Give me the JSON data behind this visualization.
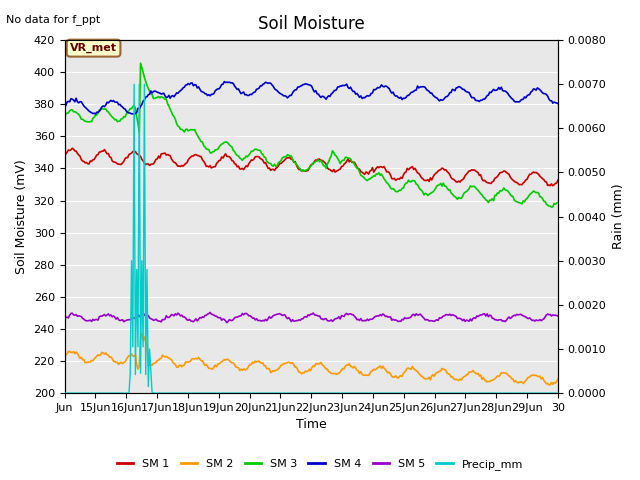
{
  "title": "Soil Moisture",
  "xlabel": "Time",
  "ylabel_left": "Soil Moisture (mV)",
  "ylabel_right": "Rain (mm)",
  "no_data_text": "No data for f_ppt",
  "vr_met_label": "VR_met",
  "ylim_left": [
    200,
    420
  ],
  "ylim_right": [
    0.0,
    0.008
  ],
  "yticks_left": [
    200,
    220,
    240,
    260,
    280,
    300,
    320,
    340,
    360,
    380,
    400,
    420
  ],
  "yticks_right": [
    0.0,
    0.001,
    0.002,
    0.003,
    0.004,
    0.005,
    0.006,
    0.007,
    0.008
  ],
  "sm1_color": "#cc0000",
  "sm2_color": "#ff9900",
  "sm3_color": "#00cc00",
  "sm4_color": "#0000cc",
  "sm5_color": "#9900cc",
  "precip_color": "#00cccc",
  "tick_positions": [
    0,
    1,
    2,
    3,
    4,
    5,
    6,
    7,
    8,
    9,
    10,
    11,
    12,
    13,
    14,
    15,
    16
  ],
  "tick_labels": [
    "Jun",
    "15Jun",
    "16Jun",
    "17Jun",
    "18Jun",
    "19Jun",
    "20Jun",
    "21Jun",
    "22Jun",
    "23Jun",
    "24Jun",
    "25Jun",
    "26Jun",
    "27Jun",
    "28Jun",
    "29Jun",
    "30"
  ]
}
